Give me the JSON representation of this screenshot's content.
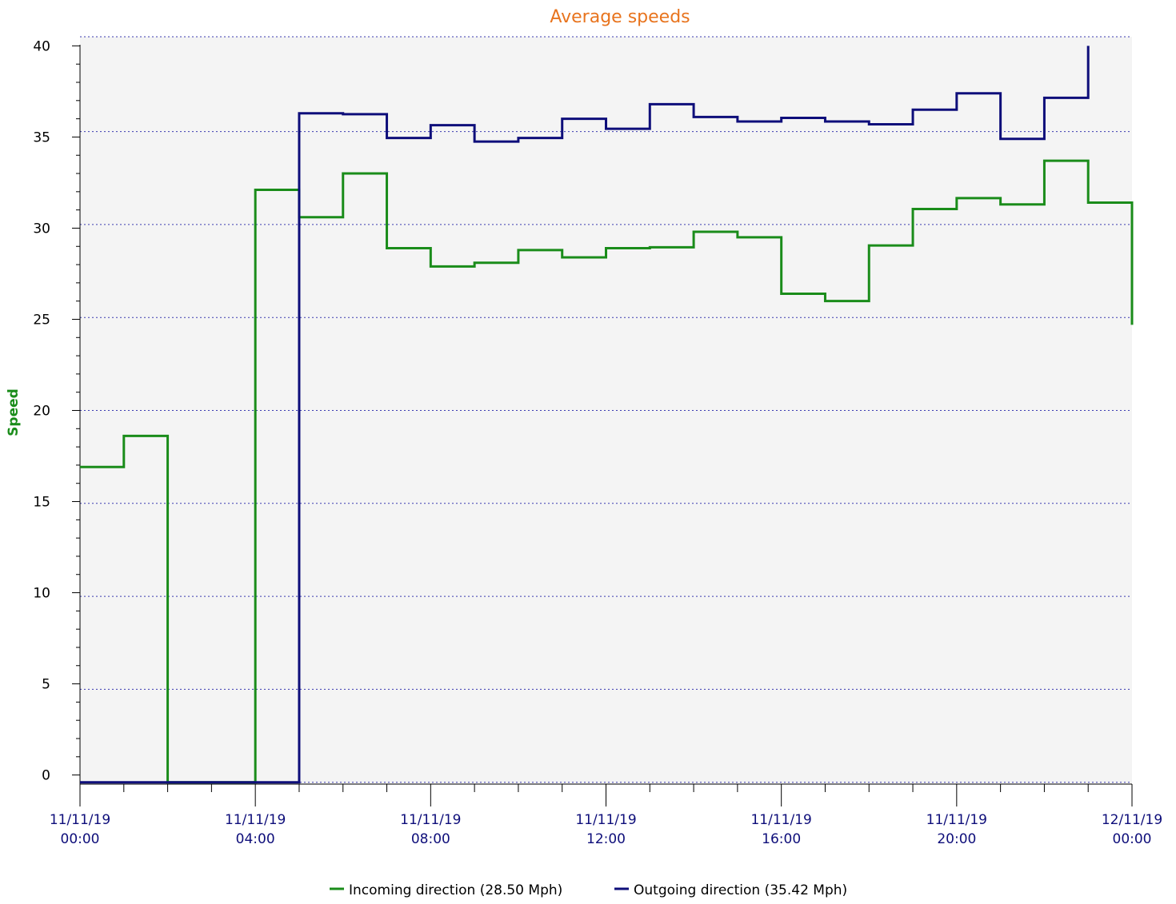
{
  "chart_data": {
    "type": "line",
    "step": true,
    "title": "Average speeds",
    "ylabel": "Speed",
    "xlabel": "",
    "ylim": [
      -0.5,
      40.5
    ],
    "yticks": [
      0,
      5,
      10,
      15,
      20,
      25,
      30,
      35,
      40
    ],
    "xlim_hours": [
      0,
      24
    ],
    "xticks": [
      {
        "hour": 0,
        "date": "11/11/19",
        "time": "00:00"
      },
      {
        "hour": 4,
        "date": "11/11/19",
        "time": "04:00"
      },
      {
        "hour": 8,
        "date": "11/11/19",
        "time": "08:00"
      },
      {
        "hour": 12,
        "date": "11/11/19",
        "time": "12:00"
      },
      {
        "hour": 16,
        "date": "11/11/19",
        "time": "16:00"
      },
      {
        "hour": 20,
        "date": "11/11/19",
        "time": "20:00"
      },
      {
        "hour": 24,
        "date": "12/11/19",
        "time": "00:00"
      }
    ],
    "grid": {
      "horizontal": true,
      "style": "dotted"
    },
    "legend_position": "bottom-center",
    "series": [
      {
        "name": "Incoming direction (28.50 Mph)",
        "color": "#1a8c1a",
        "steps": [
          {
            "start": 0,
            "end": 1,
            "value": 16.9
          },
          {
            "start": 1,
            "end": 2,
            "value": 18.6
          },
          {
            "start": 2,
            "end": 4,
            "value": -0.4
          },
          {
            "start": 4,
            "end": 5,
            "value": 32.1
          },
          {
            "start": 5,
            "end": 6,
            "value": 30.6
          },
          {
            "start": 6,
            "end": 7,
            "value": 33.0
          },
          {
            "start": 7,
            "end": 8,
            "value": 28.9
          },
          {
            "start": 8,
            "end": 9,
            "value": 27.9
          },
          {
            "start": 9,
            "end": 10,
            "value": 28.1
          },
          {
            "start": 10,
            "end": 11,
            "value": 28.8
          },
          {
            "start": 11,
            "end": 12,
            "value": 28.4
          },
          {
            "start": 12,
            "end": 13,
            "value": 28.9
          },
          {
            "start": 13,
            "end": 14,
            "value": 28.95
          },
          {
            "start": 14,
            "end": 15,
            "value": 29.8
          },
          {
            "start": 15,
            "end": 16,
            "value": 29.5
          },
          {
            "start": 16,
            "end": 17,
            "value": 26.4
          },
          {
            "start": 17,
            "end": 18,
            "value": 26.0
          },
          {
            "start": 18,
            "end": 19,
            "value": 29.05
          },
          {
            "start": 19,
            "end": 20,
            "value": 31.05
          },
          {
            "start": 20,
            "end": 21,
            "value": 31.65
          },
          {
            "start": 21,
            "end": 22,
            "value": 31.3
          },
          {
            "start": 22,
            "end": 23,
            "value": 33.7
          },
          {
            "start": 23,
            "end": 24,
            "value": 31.4
          }
        ],
        "end_value": 24.7
      },
      {
        "name": "Outgoing direction (35.42 Mph)",
        "color": "#0e0e7a",
        "steps": [
          {
            "start": 0,
            "end": 5,
            "value": -0.4
          },
          {
            "start": 5,
            "end": 6,
            "value": 36.3
          },
          {
            "start": 6,
            "end": 7,
            "value": 36.25
          },
          {
            "start": 7,
            "end": 8,
            "value": 34.95
          },
          {
            "start": 8,
            "end": 9,
            "value": 35.65
          },
          {
            "start": 9,
            "end": 10,
            "value": 34.75
          },
          {
            "start": 10,
            "end": 11,
            "value": 34.95
          },
          {
            "start": 11,
            "end": 12,
            "value": 36.0
          },
          {
            "start": 12,
            "end": 13,
            "value": 35.45
          },
          {
            "start": 13,
            "end": 14,
            "value": 36.8
          },
          {
            "start": 14,
            "end": 15,
            "value": 36.1
          },
          {
            "start": 15,
            "end": 16,
            "value": 35.85
          },
          {
            "start": 16,
            "end": 17,
            "value": 36.05
          },
          {
            "start": 17,
            "end": 18,
            "value": 35.85
          },
          {
            "start": 18,
            "end": 19,
            "value": 35.7
          },
          {
            "start": 19,
            "end": 20,
            "value": 36.5
          },
          {
            "start": 20,
            "end": 21,
            "value": 37.4
          },
          {
            "start": 21,
            "end": 22,
            "value": 34.9
          },
          {
            "start": 22,
            "end": 23,
            "value": 37.15
          }
        ],
        "end_value": 40.0
      }
    ]
  }
}
